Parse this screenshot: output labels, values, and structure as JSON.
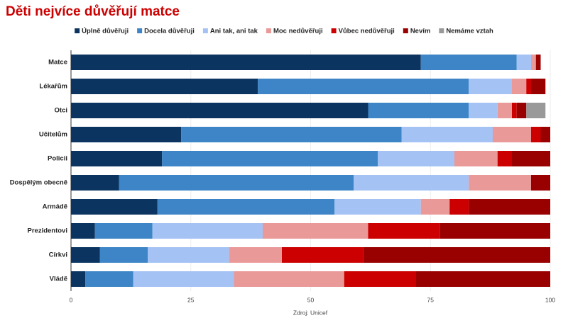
{
  "chart_data": {
    "type": "stacked-barh",
    "title": "Děti nejvíce důvěřují matce",
    "source": "Zdroj: Unicef",
    "categories": [
      "Matce",
      "Lékařům",
      "Otci",
      "Učitelům",
      "Policii",
      "Dospělým obecně",
      "Armádě",
      "Prezidentovi",
      "Církvi",
      "Vládě"
    ],
    "series": [
      {
        "name": "Úplně důvěřuji",
        "color": "#0b3560",
        "values": [
          73,
          39,
          62,
          23,
          19,
          10,
          18,
          5,
          6,
          3
        ]
      },
      {
        "name": "Docela důvěřuji",
        "color": "#3d85c6",
        "values": [
          20,
          44,
          21,
          46,
          45,
          49,
          37,
          12,
          10,
          10
        ]
      },
      {
        "name": "Ani tak, ani tak",
        "color": "#a4c2f4",
        "values": [
          3,
          9,
          6,
          19,
          16,
          24,
          18,
          23,
          17,
          21
        ]
      },
      {
        "name": "Moc nedůvěřuji",
        "color": "#ea9999",
        "values": [
          1,
          3,
          3,
          8,
          9,
          13,
          6,
          22,
          11,
          23
        ]
      },
      {
        "name": "Vůbec nedůvěřuji",
        "color": "#cc0000",
        "values": [
          0,
          1,
          1,
          2,
          3,
          0,
          4,
          15,
          17,
          15
        ]
      },
      {
        "name": "Nevím",
        "color": "#990000",
        "values": [
          1,
          3,
          2,
          2,
          8,
          4,
          17,
          23,
          39,
          28
        ]
      },
      {
        "name": "Nemáme vztah",
        "color": "#999999",
        "values": [
          0,
          0,
          4,
          0,
          0,
          0,
          0,
          0,
          0,
          0
        ]
      }
    ],
    "xlim": [
      0,
      100
    ],
    "xticks": [
      0,
      25,
      50,
      75,
      100
    ],
    "grid": true
  }
}
